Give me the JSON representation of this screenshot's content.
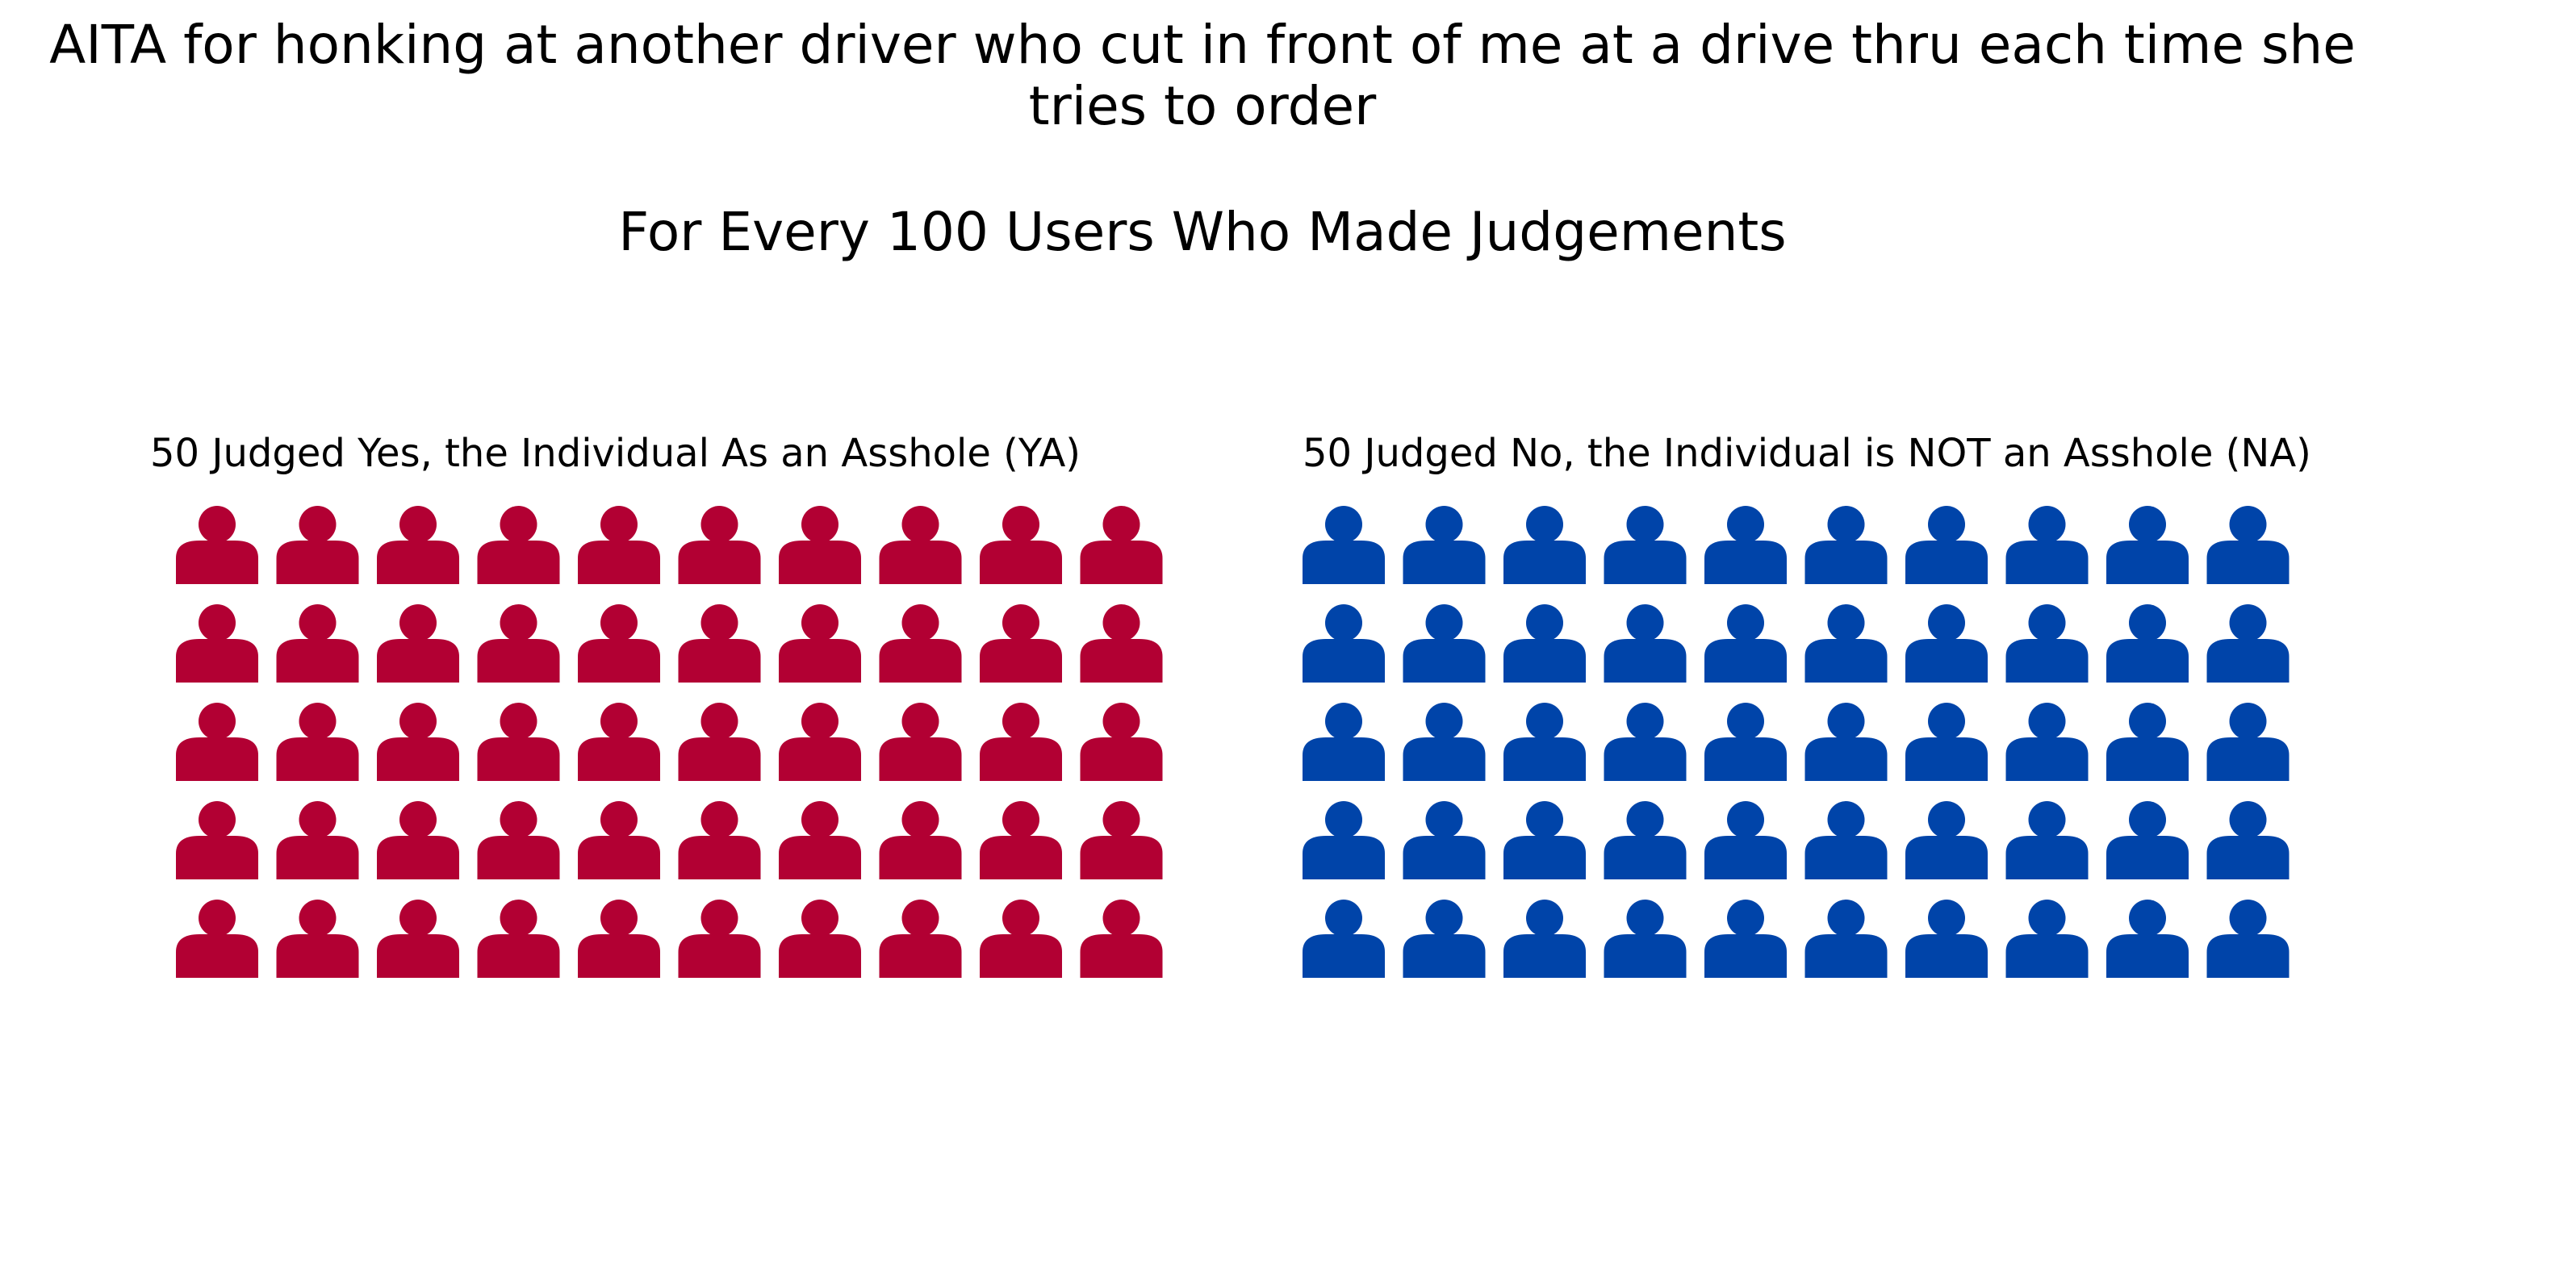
{
  "title": "AITA for honking at another driver who cut in front of me at a drive thru each time she tries to order",
  "subtitle": "For Every 100 Users Who Made Judgements",
  "chart_data": {
    "type": "waffle",
    "total": 100,
    "rows": 5,
    "columns_per_group": 10,
    "icon": "person-icon",
    "groups": [
      {
        "label": "50 Judged Yes, the Individual As an Asshole (YA)",
        "count": 50,
        "color": "#b20033"
      },
      {
        "label": "50 Judged No, the Individual is NOT an Asshole (NA)",
        "count": 50,
        "color": "#0044a9"
      }
    ]
  }
}
